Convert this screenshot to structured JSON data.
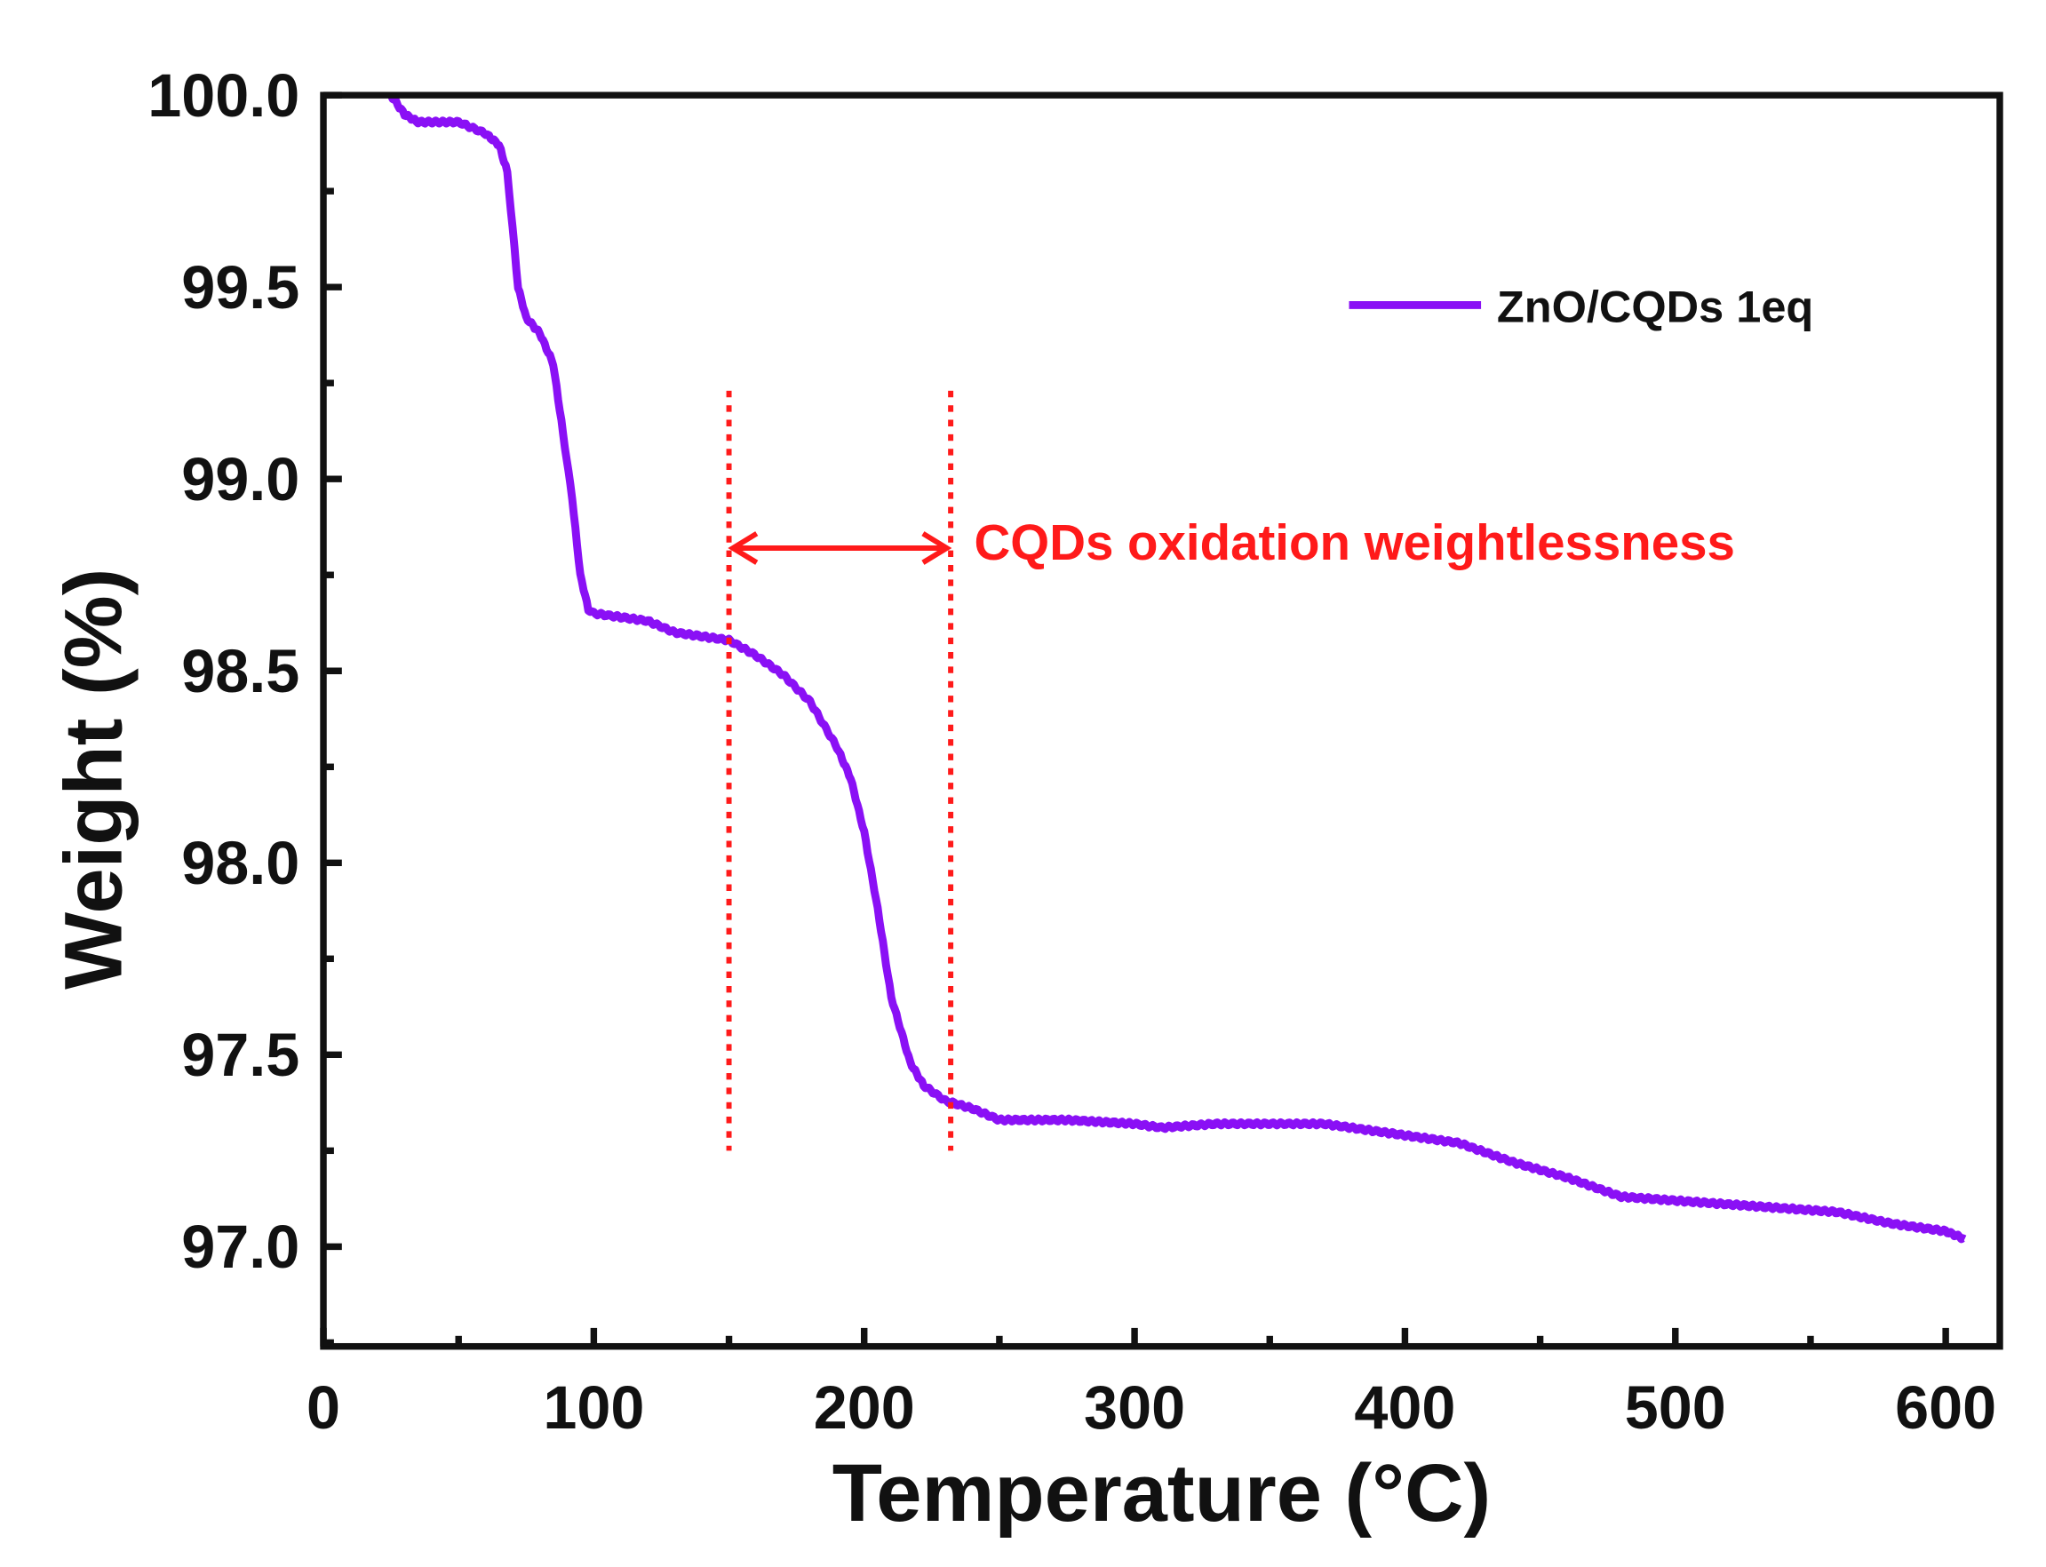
{
  "chart_data": {
    "type": "line",
    "title": "",
    "xlabel": "Temperature (°C)",
    "ylabel": "Weight (%)",
    "xlim": [
      0,
      620
    ],
    "ylim": [
      96.74,
      100.0
    ],
    "xticks": [
      0,
      100,
      200,
      300,
      400,
      500,
      600
    ],
    "xtick_labels": [
      "0",
      "100",
      "200",
      "300",
      "400",
      "500",
      "600"
    ],
    "yticks": [
      97.0,
      97.5,
      98.0,
      98.5,
      99.0,
      99.5,
      100.0
    ],
    "ytick_labels": [
      "97.0",
      "97.5",
      "98.0",
      "98.5",
      "99.0",
      "99.5",
      "100.0"
    ],
    "grid": false,
    "legend_position": "top-right",
    "series": [
      {
        "name": "ZnO/CQDs 1eq",
        "color": "#8a10f5",
        "x": [
          25,
          30,
          35,
          50,
          60,
          65,
          68,
          70,
          72,
          75,
          80,
          85,
          88,
          92,
          95,
          98,
          100,
          120,
          130,
          150,
          160,
          170,
          180,
          190,
          195,
          200,
          205,
          210,
          217,
          222,
          230,
          240,
          250,
          275,
          300,
          310,
          330,
          370,
          400,
          420,
          440,
          460,
          480,
          500,
          520,
          540,
          560,
          580,
          600,
          607
        ],
        "y": [
          100.0,
          99.95,
          99.93,
          99.93,
          99.9,
          99.87,
          99.8,
          99.65,
          99.5,
          99.42,
          99.38,
          99.3,
          99.15,
          98.95,
          98.75,
          98.66,
          98.65,
          98.63,
          98.6,
          98.58,
          98.54,
          98.49,
          98.42,
          98.3,
          98.22,
          98.08,
          97.88,
          97.65,
          97.48,
          97.42,
          97.38,
          97.36,
          97.33,
          97.33,
          97.32,
          97.31,
          97.32,
          97.32,
          97.29,
          97.27,
          97.22,
          97.18,
          97.13,
          97.12,
          97.11,
          97.1,
          97.09,
          97.06,
          97.04,
          97.02
        ]
      }
    ],
    "annotations": {
      "text": "CQDs oxidation weightlessness",
      "color": "#ff1a1a",
      "range_start_x": 150,
      "range_end_x": 232,
      "line_y_range": [
        97.25,
        99.23
      ],
      "arrow_y": 98.82
    }
  }
}
